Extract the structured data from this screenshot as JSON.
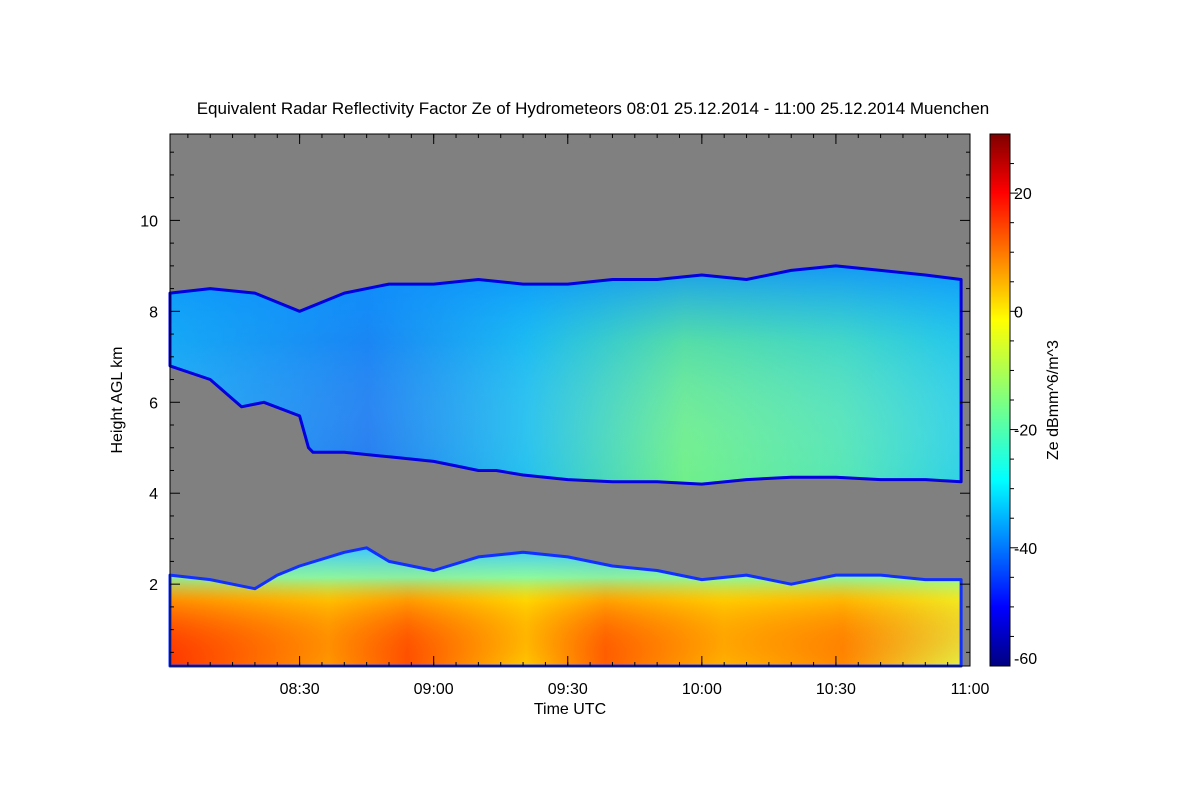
{
  "chart_data": {
    "type": "heatmap",
    "title": "Equivalent Radar Reflectivity Factor Ze of Hydrometeors   08:01 25.12.2014 - 11:00 25.12.2014 Muenchen",
    "xlabel": "Time UTC",
    "ylabel": "Height AGL km",
    "x_range_minutes": [
      481,
      660
    ],
    "xlim": [
      "08:01",
      "11:00"
    ],
    "ylim": [
      0.2,
      11.9
    ],
    "x_ticks": [
      {
        "label": "08:30",
        "minutes": 510
      },
      {
        "label": "09:00",
        "minutes": 540
      },
      {
        "label": "09:30",
        "minutes": 570
      },
      {
        "label": "10:00",
        "minutes": 600
      },
      {
        "label": "10:30",
        "minutes": 630
      },
      {
        "label": "11:00",
        "minutes": 660
      }
    ],
    "y_ticks": [
      {
        "label": "2",
        "value": 2
      },
      {
        "label": "4",
        "value": 4
      },
      {
        "label": "6",
        "value": 6
      },
      {
        "label": "8",
        "value": 8
      },
      {
        "label": "10",
        "value": 10
      }
    ],
    "background_color": "#808080",
    "colorbar": {
      "label": "Ze dBmm^6/m^3",
      "range": [
        -60,
        30
      ],
      "colormap": "jet",
      "ticks": [
        {
          "label": "20",
          "value": 20
        },
        {
          "label": "0",
          "value": 0
        },
        {
          "label": "-20",
          "value": -20
        },
        {
          "label": "-40",
          "value": -40
        },
        {
          "label": "-60",
          "value": -60
        }
      ]
    },
    "layers": [
      {
        "name": "upper-cloud",
        "top_km": [
          [
            481,
            8.4
          ],
          [
            490,
            8.5
          ],
          [
            500,
            8.4
          ],
          [
            510,
            8.0
          ],
          [
            520,
            8.4
          ],
          [
            530,
            8.6
          ],
          [
            540,
            8.6
          ],
          [
            550,
            8.7
          ],
          [
            560,
            8.6
          ],
          [
            570,
            8.6
          ],
          [
            580,
            8.7
          ],
          [
            590,
            8.7
          ],
          [
            600,
            8.8
          ],
          [
            610,
            8.7
          ],
          [
            620,
            8.9
          ],
          [
            630,
            9.0
          ],
          [
            640,
            8.9
          ],
          [
            650,
            8.8
          ],
          [
            658,
            8.7
          ]
        ],
        "bottom_km": [
          [
            481,
            6.8
          ],
          [
            490,
            6.5
          ],
          [
            497,
            5.9
          ],
          [
            502,
            6.0
          ],
          [
            510,
            5.7
          ],
          [
            512,
            5.0
          ],
          [
            513,
            4.9
          ],
          [
            520,
            4.9
          ],
          [
            530,
            4.8
          ],
          [
            540,
            4.7
          ],
          [
            545,
            4.6
          ],
          [
            550,
            4.5
          ],
          [
            554,
            4.5
          ],
          [
            560,
            4.4
          ],
          [
            570,
            4.3
          ],
          [
            580,
            4.25
          ],
          [
            590,
            4.25
          ],
          [
            600,
            4.2
          ],
          [
            610,
            4.3
          ],
          [
            620,
            4.35
          ],
          [
            630,
            4.35
          ],
          [
            640,
            4.3
          ],
          [
            650,
            4.3
          ],
          [
            658,
            4.25
          ]
        ],
        "ze_dbz_samples": [
          [
            490,
            -37
          ],
          [
            515,
            -44
          ],
          [
            530,
            -40
          ],
          [
            555,
            -33
          ],
          [
            575,
            -24
          ],
          [
            600,
            -19
          ],
          [
            625,
            -21
          ],
          [
            650,
            -25
          ]
        ]
      },
      {
        "name": "low-precipitation",
        "top_km": [
          [
            481,
            2.2
          ],
          [
            490,
            2.1
          ],
          [
            500,
            1.9
          ],
          [
            505,
            2.2
          ],
          [
            510,
            2.4
          ],
          [
            520,
            2.7
          ],
          [
            525,
            2.8
          ],
          [
            530,
            2.5
          ],
          [
            540,
            2.3
          ],
          [
            550,
            2.6
          ],
          [
            560,
            2.7
          ],
          [
            570,
            2.6
          ],
          [
            580,
            2.4
          ],
          [
            590,
            2.3
          ],
          [
            600,
            2.1
          ],
          [
            610,
            2.2
          ],
          [
            620,
            2.0
          ],
          [
            630,
            2.2
          ],
          [
            640,
            2.2
          ],
          [
            650,
            2.1
          ],
          [
            658,
            2.1
          ]
        ],
        "bottom_km": [
          [
            481,
            0.2
          ],
          [
            658,
            0.2
          ]
        ],
        "ze_dbz_samples": [
          [
            485,
            18
          ],
          [
            500,
            10
          ],
          [
            520,
            15
          ],
          [
            540,
            6
          ],
          [
            560,
            14
          ],
          [
            575,
            9
          ],
          [
            595,
            4
          ],
          [
            610,
            8
          ],
          [
            630,
            5
          ],
          [
            650,
            -2
          ]
        ]
      }
    ]
  }
}
